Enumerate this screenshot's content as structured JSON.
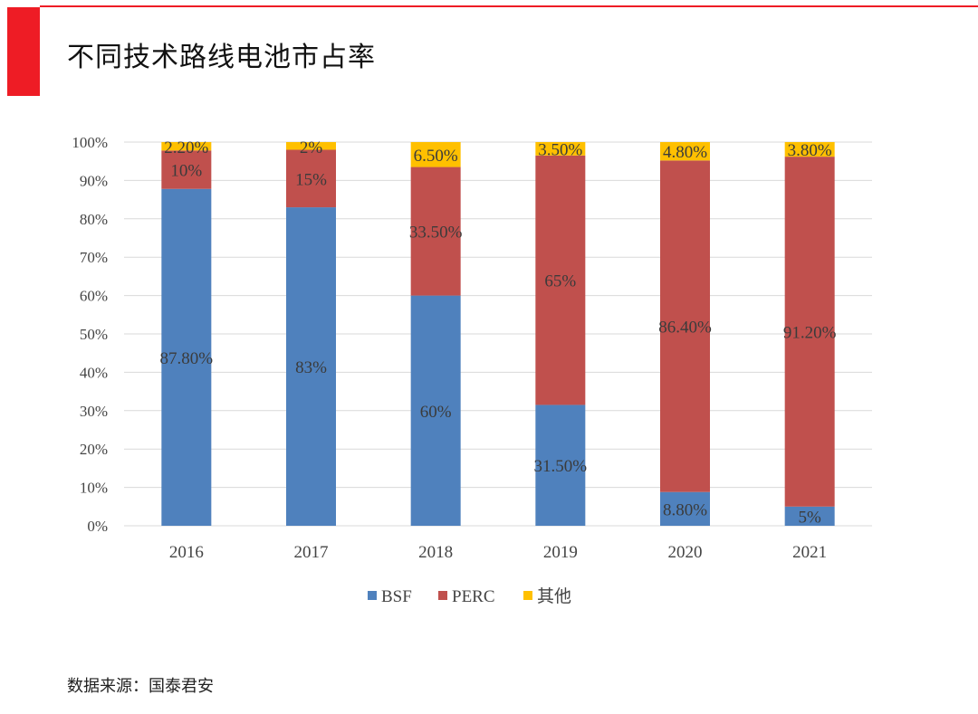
{
  "page": {
    "title": "不同技术路线电池市占率",
    "source": "数据来源：国泰君安"
  },
  "colors": {
    "accent": "#ee1c25",
    "BSF": "#4f81bd",
    "PERC": "#c0504d",
    "其他": "#ffc000",
    "grid": "#d9d9d9"
  },
  "chart_data": {
    "type": "bar",
    "stacked": true,
    "categories": [
      "2016",
      "2017",
      "2018",
      "2019",
      "2020",
      "2021"
    ],
    "series": [
      {
        "name": "BSF",
        "values": [
          87.8,
          83,
          60,
          31.5,
          8.8,
          5
        ],
        "labels": [
          "87.80%",
          "83%",
          "60%",
          "31.50%",
          "8.80%",
          "5%"
        ]
      },
      {
        "name": "PERC",
        "values": [
          10,
          15,
          33.5,
          65,
          86.4,
          91.2
        ],
        "labels": [
          "10%",
          "15%",
          "33.50%",
          "65%",
          "86.40%",
          "91.20%"
        ]
      },
      {
        "name": "其他",
        "values": [
          2.2,
          2,
          6.5,
          3.5,
          4.8,
          3.8
        ],
        "labels": [
          "2.20%",
          "2%",
          "6.50%",
          "3.50%",
          "4.80%",
          "3.80%"
        ]
      }
    ],
    "y_ticks": [
      "0%",
      "10%",
      "20%",
      "30%",
      "40%",
      "50%",
      "60%",
      "70%",
      "80%",
      "90%",
      "100%"
    ],
    "ylim": [
      0,
      100
    ],
    "grid": true,
    "legend": "bottom"
  }
}
